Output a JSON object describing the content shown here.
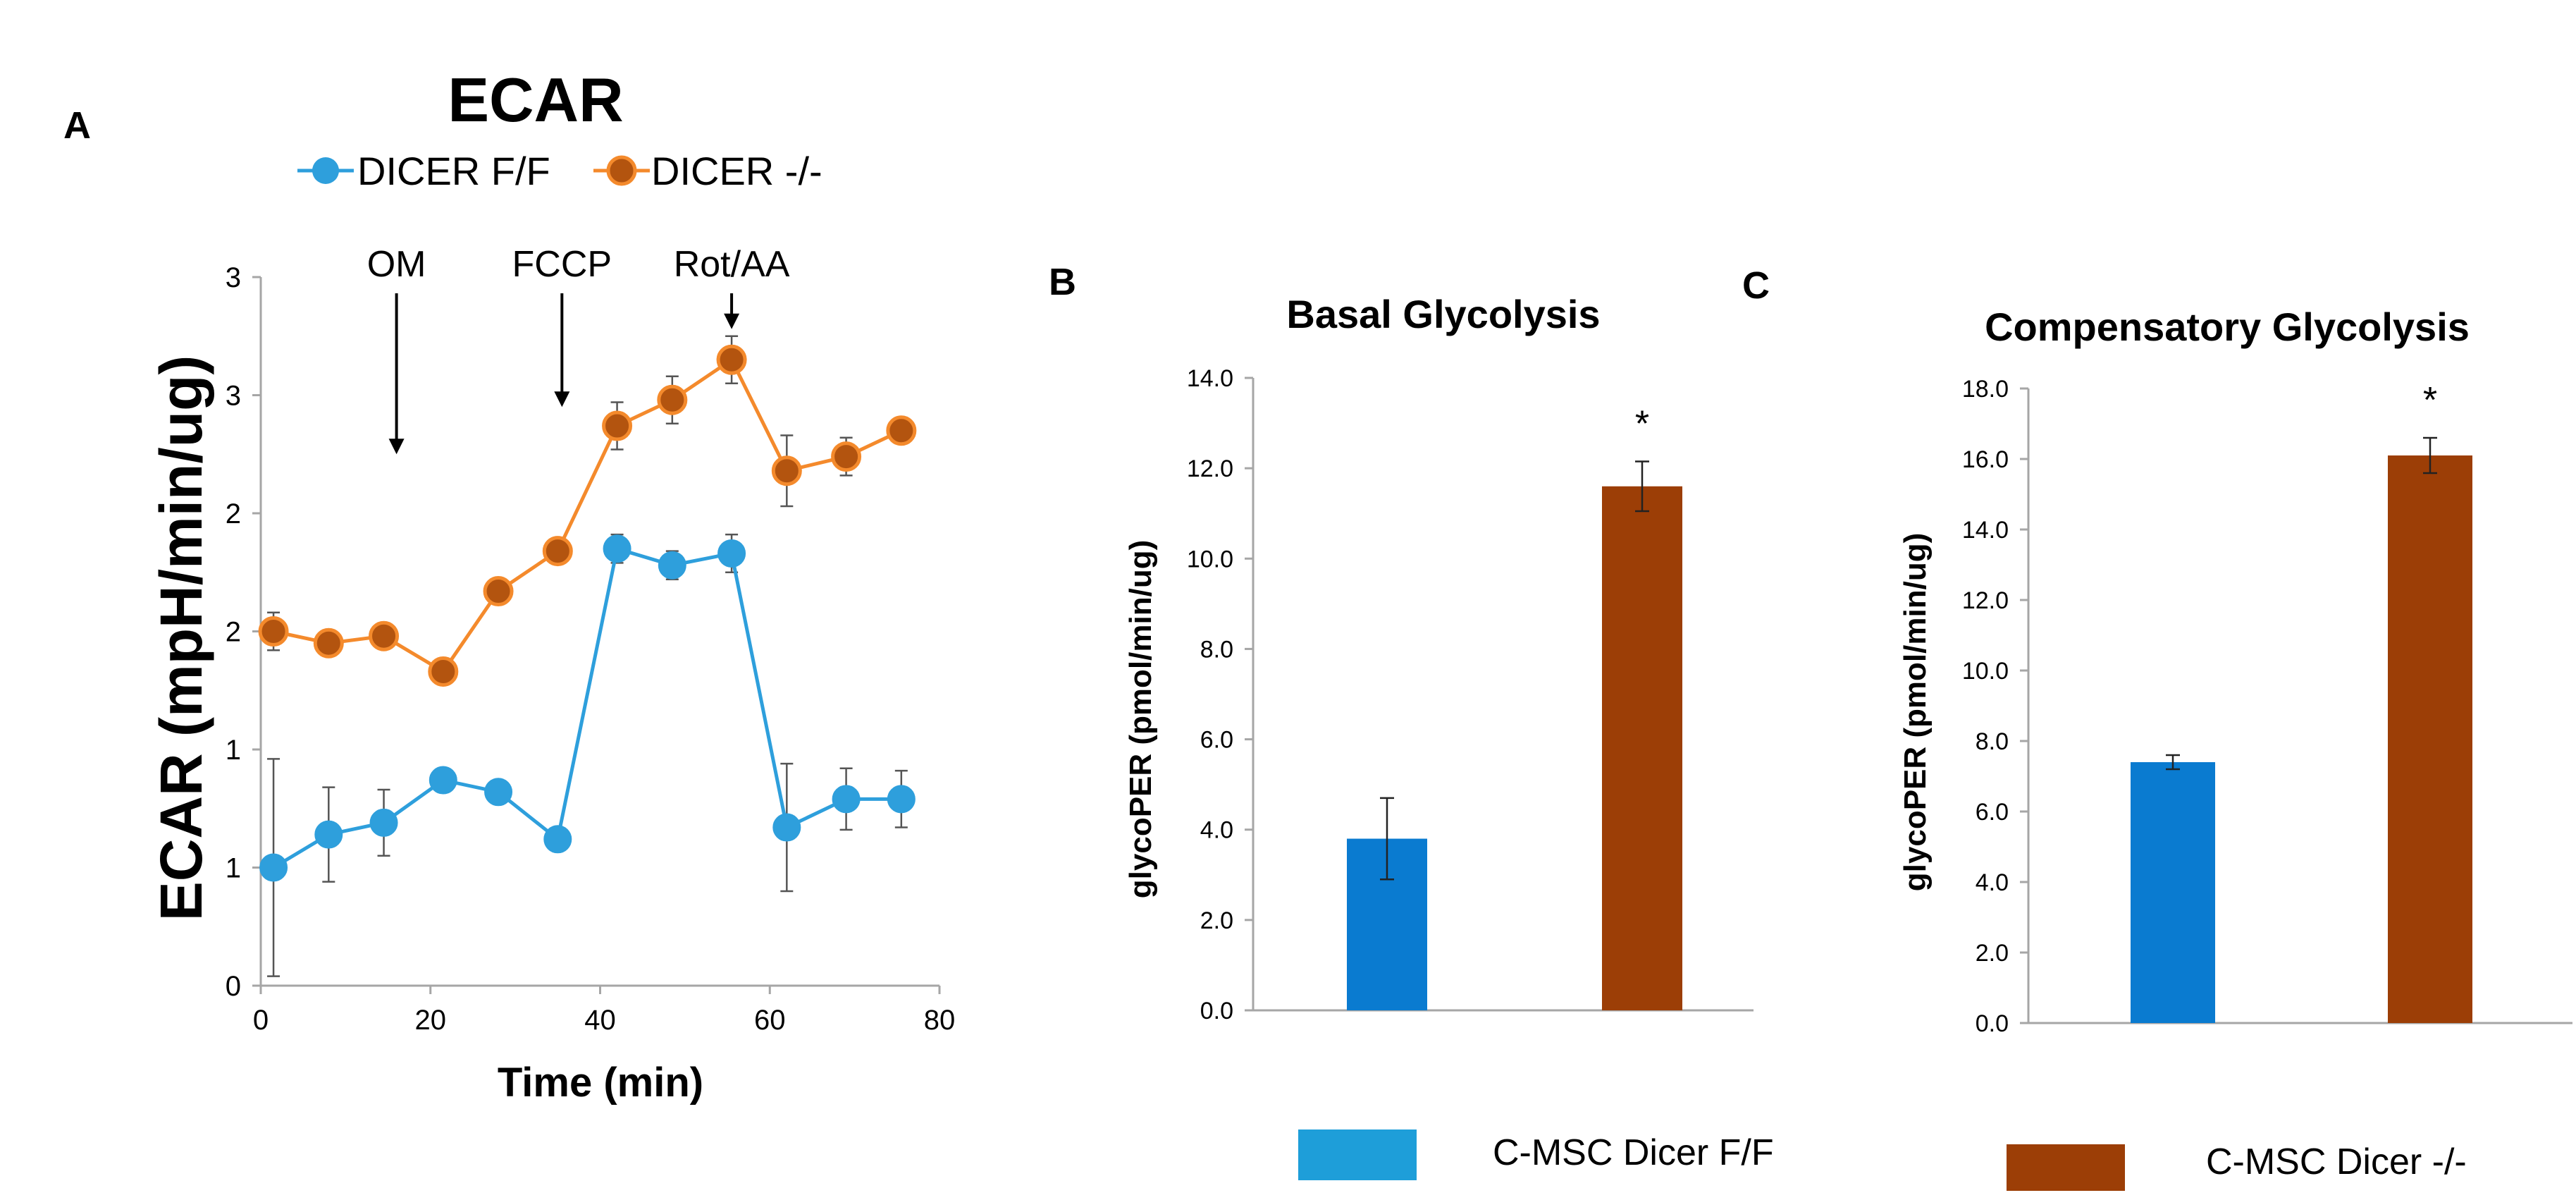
{
  "colors": {
    "ff_line": "#2e9fdc",
    "ko_line": "#f48a2c",
    "ko_marker": "#b3540f",
    "ff_bar": "#0a7bd0",
    "ko_bar": "#9c3e06",
    "legend_ff": "#1e9ed9",
    "legend_ko": "#9c3e06",
    "axis": "#a6a6a6"
  },
  "panels": {
    "a": "A",
    "b": "B",
    "c": "C"
  },
  "legend_bottom": {
    "ff_label": "C-MSC Dicer F/F",
    "ko_label": "C-MSC Dicer -/-"
  },
  "chart_data": [
    {
      "type": "line",
      "title": "ECAR",
      "xlabel": "Time (min)",
      "ylabel": "ECAR (mpH/min/ug)",
      "xlim": [
        0,
        80
      ],
      "ylim": [
        0,
        3
      ],
      "x_ticks": [
        "0",
        "20",
        "40",
        "60",
        "80"
      ],
      "y_ticks": [
        "0",
        "1",
        "1",
        "2",
        "2",
        "3",
        "3"
      ],
      "x": [
        1.5,
        8,
        14.5,
        21.5,
        28,
        35,
        42,
        48.5,
        55.5,
        62,
        69,
        75.5
      ],
      "series": [
        {
          "name": "DICER F/F",
          "values": [
            0.5,
            0.64,
            0.69,
            0.87,
            0.82,
            0.62,
            1.85,
            1.78,
            1.83,
            0.67,
            0.79,
            0.79
          ],
          "err": [
            0.46,
            0.2,
            0.14,
            0.04,
            0.04,
            0.03,
            0.06,
            0.06,
            0.08,
            0.27,
            0.13,
            0.12
          ]
        },
        {
          "name": "DICER -/-",
          "values": [
            1.5,
            1.45,
            1.48,
            1.33,
            1.67,
            1.84,
            2.37,
            2.48,
            2.65,
            2.18,
            2.24,
            2.35
          ],
          "err": [
            0.08,
            0.05,
            0.05,
            0.03,
            0.03,
            0.03,
            0.1,
            0.1,
            0.1,
            0.15,
            0.08,
            0.05
          ]
        }
      ],
      "annotations": [
        {
          "text": "OM",
          "x": 16,
          "arrow_y": 2.25
        },
        {
          "text": "FCCP",
          "x": 35.5,
          "arrow_y": 2.45
        },
        {
          "text": "Rot/AA",
          "x": 55.5,
          "arrow_y": 2.78
        }
      ]
    },
    {
      "type": "bar",
      "title": "Basal Glycolysis",
      "ylabel": "glycoPER (pmol/min/ug)",
      "ylim": [
        0,
        14
      ],
      "y_ticks": [
        "0.0",
        "2.0",
        "4.0",
        "6.0",
        "8.0",
        "10.0",
        "12.0",
        "14.0"
      ],
      "categories": [
        "C-MSC Dicer F/F",
        "C-MSC Dicer -/-"
      ],
      "values": [
        3.8,
        11.6
      ],
      "err": [
        0.9,
        0.55
      ],
      "significance": [
        "",
        "*"
      ]
    },
    {
      "type": "bar",
      "title": "Compensatory Glycolysis",
      "ylabel": "glycoPER (pmol/min/ug)",
      "ylim": [
        0,
        18
      ],
      "y_ticks": [
        "0.0",
        "2.0",
        "4.0",
        "6.0",
        "8.0",
        "10.0",
        "12.0",
        "14.0",
        "16.0",
        "18.0"
      ],
      "categories": [
        "C-MSC Dicer F/F",
        "C-MSC Dicer -/-"
      ],
      "values": [
        7.4,
        16.1
      ],
      "err": [
        0.2,
        0.5
      ],
      "significance": [
        "",
        "*"
      ]
    }
  ]
}
